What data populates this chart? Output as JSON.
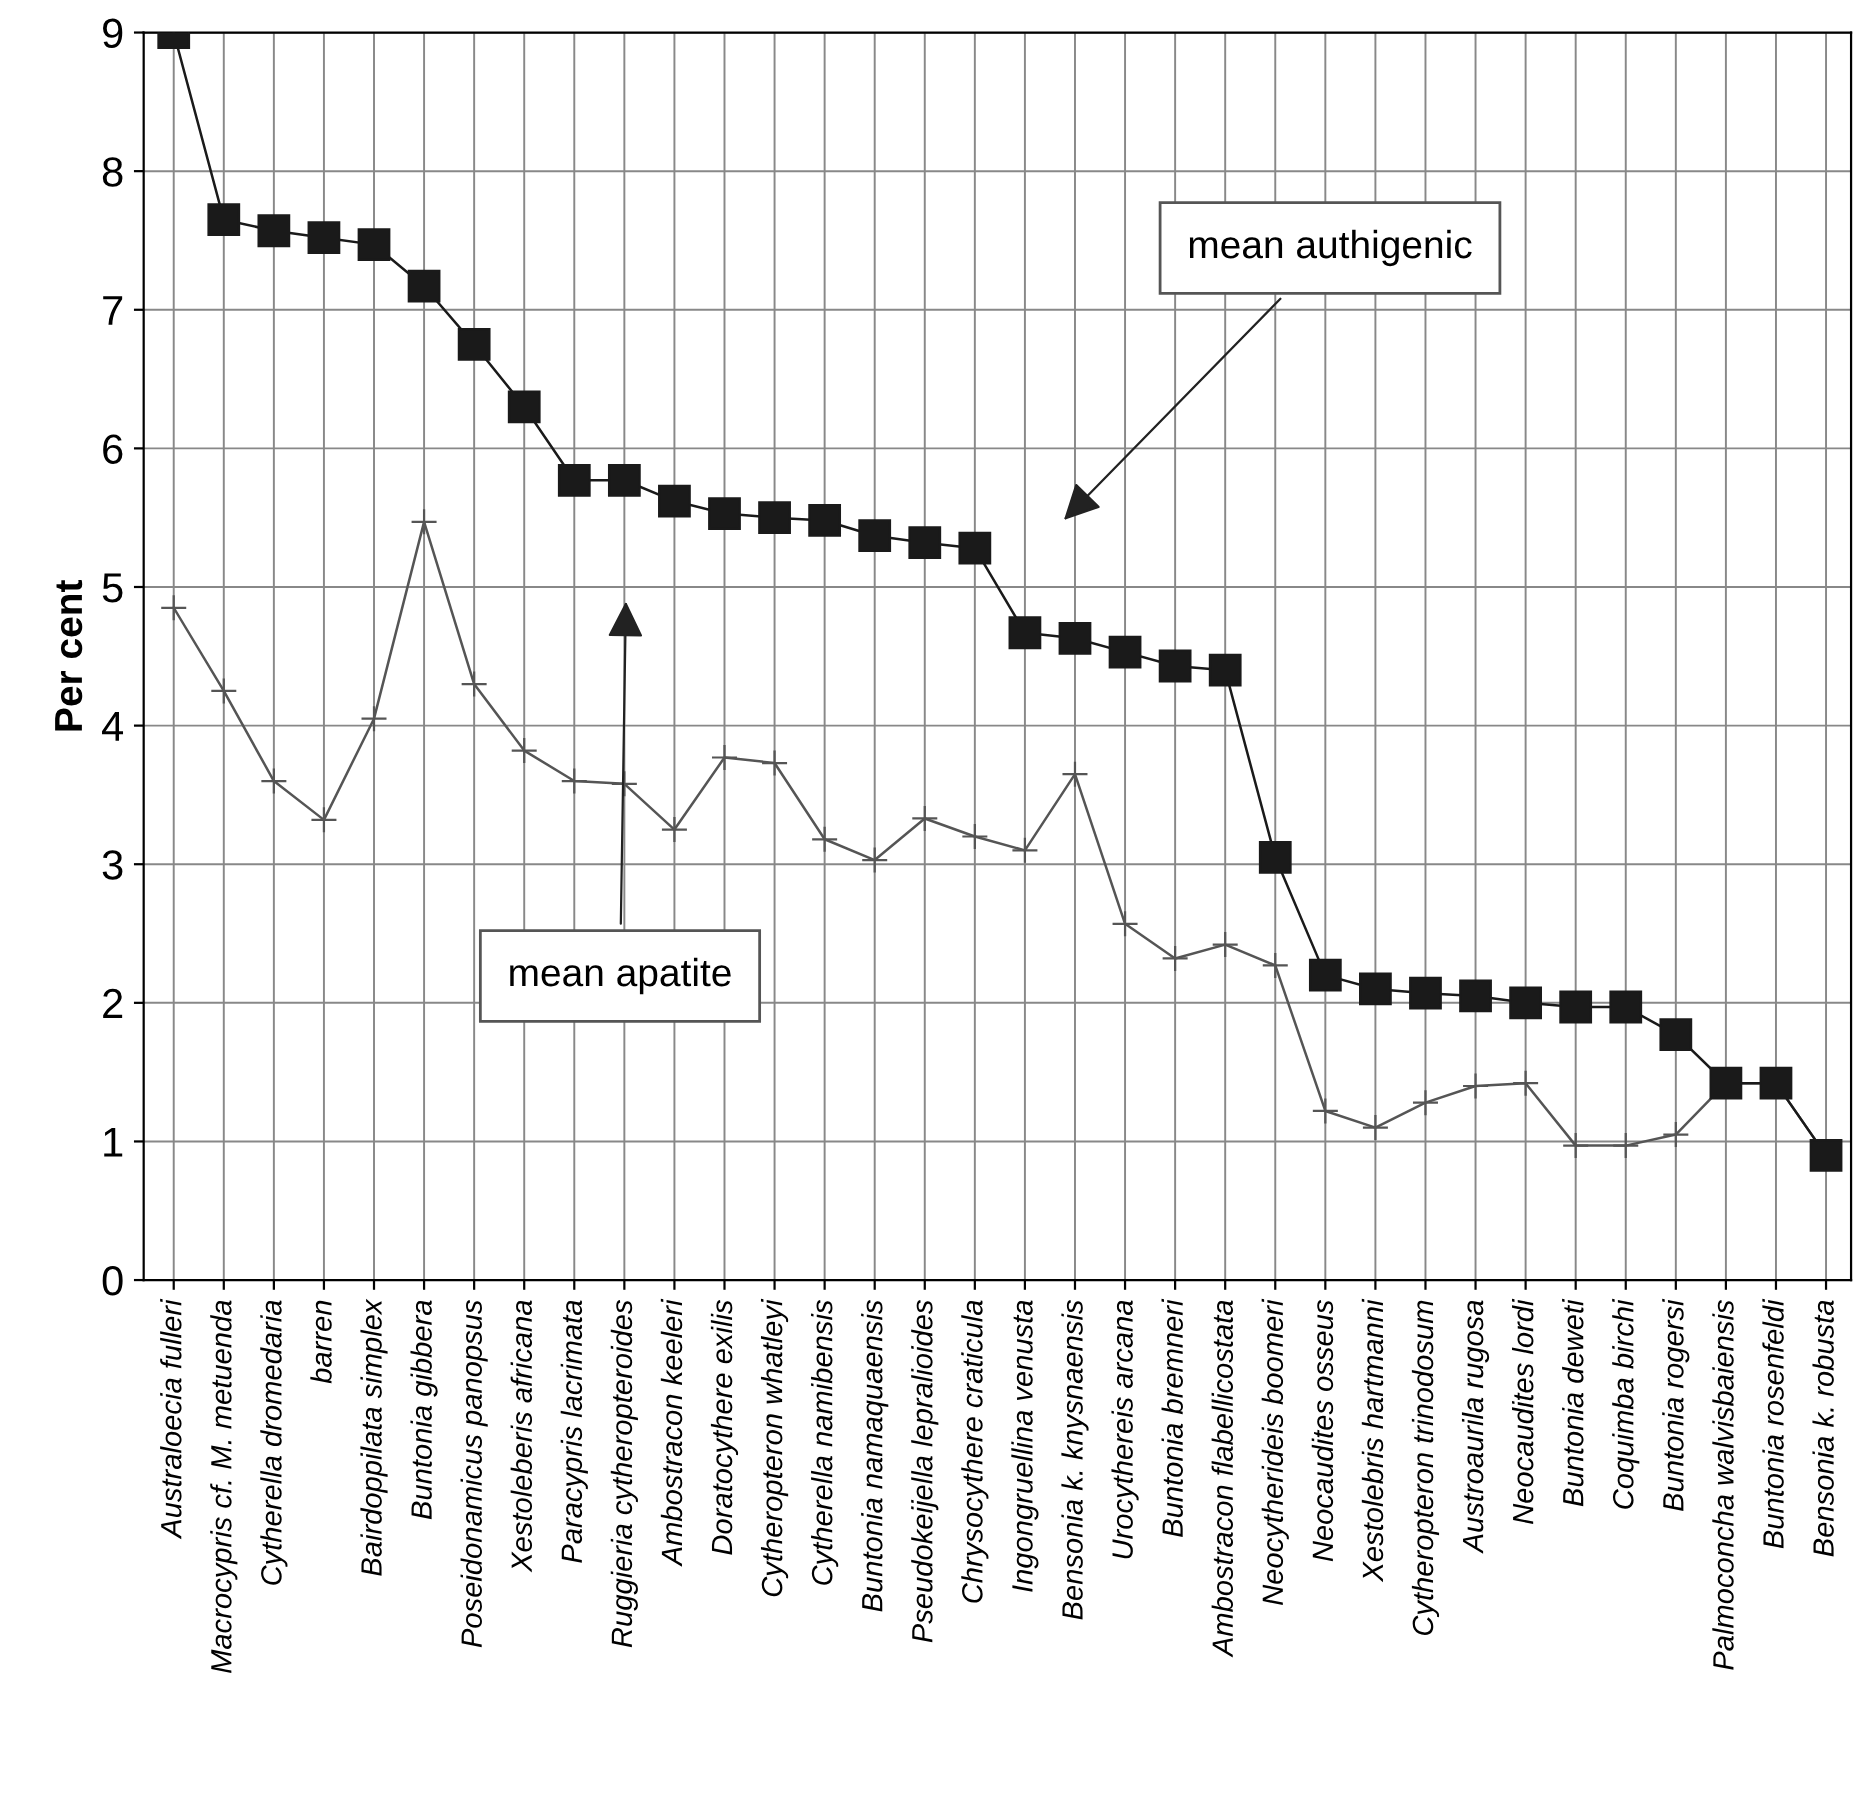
{
  "chart_data": {
    "type": "line",
    "ylabel": "Per cent",
    "categories": [
      "Australoecia fulleri",
      "Macrocypris cf. M. metuenda",
      "Cytherella dromedaria",
      "barren",
      "Bairdoppilata simplex",
      "Buntonia gibbera",
      "Poseidonamicus panopsus",
      "Xestoleberis africana",
      "Paracypris lacrimata",
      "Ruggieria cytheropteroides",
      "Ambostracon keeleri",
      "Doratocythere exilis",
      "Cytheropteron whatleyi",
      "Cytherella namibensis",
      "Buntonia namaquaensis",
      "Pseudokeijella lepralioides",
      "Chrysocythere craticula",
      "Ingongruellina venusta",
      "Bensonia k. knysnaensis",
      "Urocythereis arcana",
      "Buntonia bremneri",
      "Ambostracon flabellicostata",
      "Neocytherideis boomeri",
      "Neocaudites osseus",
      "Xestolebris hartmanni",
      "Cytheropteron trinodosum",
      "Austroaurila rugosa",
      "Neocaudites lordi",
      "Buntonia deweti",
      "Coquimba birchi",
      "Buntonia rogersi",
      "Palmoconcha walvisbaiensis",
      "Buntonia rosenfeldi",
      "Bensonia k. robusta"
    ],
    "series": [
      {
        "color": "#555555",
        "marker": "cross",
        "values": [
          4.85,
          4.25,
          3.6,
          3.32,
          4.05,
          5.47,
          4.3,
          3.82,
          3.6,
          3.58,
          3.25,
          3.77,
          3.73,
          3.18,
          3.03,
          3.33,
          3.2,
          3.1,
          3.65,
          2.57,
          2.32,
          2.42,
          2.27,
          1.22,
          1.1,
          1.28,
          1.4,
          1.42,
          0.97,
          0.97,
          1.05,
          1.42,
          1.42,
          0.9
        ]
      },
      {
        "color": "#1a1a1a",
        "marker": "square",
        "values": [
          9.0,
          7.65,
          7.57,
          7.52,
          7.47,
          7.17,
          6.75,
          6.3,
          5.77,
          5.77,
          5.62,
          5.53,
          5.5,
          5.48,
          5.37,
          5.32,
          5.28,
          4.67,
          4.63,
          4.53,
          4.43,
          4.4,
          3.05,
          2.2,
          2.1,
          2.07,
          2.05,
          2.0,
          1.97,
          1.97,
          1.77,
          1.42,
          1.42,
          0.9
        ]
      }
    ],
    "annotations": [
      "mean authigenic",
      "mean apatite"
    ],
    "ylim": [
      0,
      9
    ],
    "yticks": [
      0,
      1,
      2,
      3,
      4,
      5,
      6,
      7,
      8,
      9
    ],
    "grid": true,
    "legend": false
  }
}
